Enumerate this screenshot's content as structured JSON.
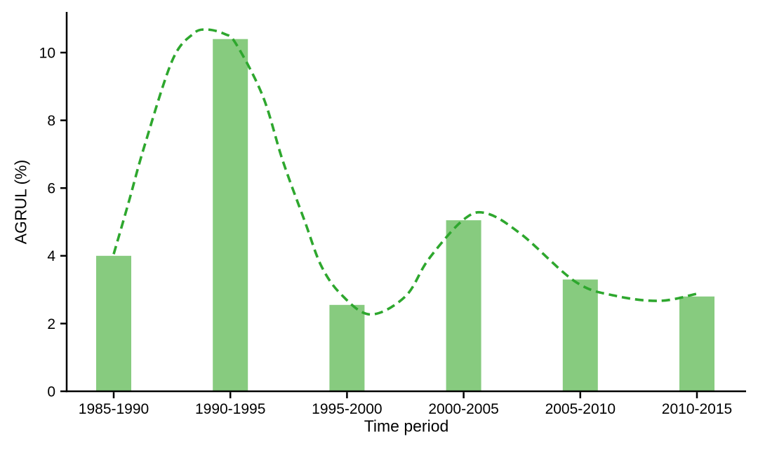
{
  "figure": {
    "background": "#ffffff",
    "axis_color": "#000000",
    "text_color": "#000000"
  },
  "chart_data": {
    "type": "bar",
    "title": "",
    "xlabel": "Time period",
    "ylabel": "AGRUL (%)",
    "categories": [
      "1985-1990",
      "1990-1995",
      "1995-2000",
      "2000-2005",
      "2005-2010",
      "2010-2015"
    ],
    "values": [
      4.0,
      10.4,
      2.55,
      5.05,
      3.3,
      2.8
    ],
    "ylim": [
      0,
      11.2
    ],
    "yticks": [
      0,
      2,
      4,
      6,
      8,
      10
    ],
    "grid": false,
    "legend": "none",
    "bar_color": "#87CB7F",
    "trend_line": {
      "style": "dashed",
      "color": "#2EA72E",
      "x_unit": "category-index",
      "points": [
        [
          0.0,
          4.05
        ],
        [
          0.13,
          5.6
        ],
        [
          0.26,
          7.2
        ],
        [
          0.5,
          9.75
        ],
        [
          0.68,
          10.55
        ],
        [
          0.8,
          10.68
        ],
        [
          0.95,
          10.55
        ],
        [
          1.05,
          10.25
        ],
        [
          1.28,
          8.7
        ],
        [
          1.45,
          6.8
        ],
        [
          1.64,
          5.0
        ],
        [
          1.78,
          3.7
        ],
        [
          1.95,
          2.86
        ],
        [
          2.2,
          2.27
        ],
        [
          2.5,
          2.8
        ],
        [
          2.7,
          3.9
        ],
        [
          3.0,
          5.07
        ],
        [
          3.2,
          5.25
        ],
        [
          3.5,
          4.62
        ],
        [
          3.96,
          3.23
        ],
        [
          4.3,
          2.82
        ],
        [
          4.68,
          2.67
        ],
        [
          5.0,
          2.88
        ]
      ]
    }
  }
}
